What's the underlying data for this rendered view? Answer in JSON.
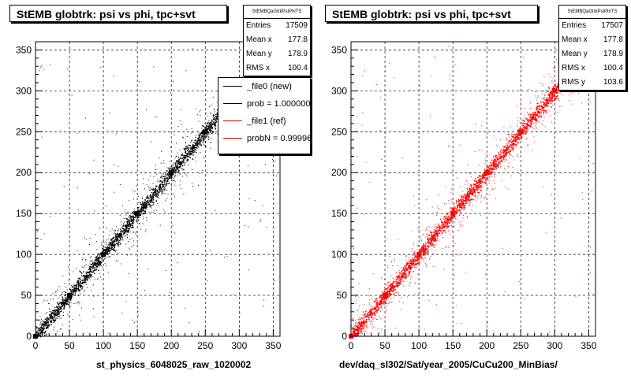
{
  "panels": [
    {
      "title": "StEMB globtrk: psi vs phi, tpc+svt",
      "stats": {
        "name": "StEMBQaGtrkPsiPhiTS",
        "rows": [
          {
            "label": "Entries",
            "value": "17509"
          },
          {
            "label": "Mean x",
            "value": "177.8"
          },
          {
            "label": "Mean y",
            "value": "178.9"
          },
          {
            "label": "RMS x",
            "value": "100.4"
          }
        ]
      },
      "legend": {
        "entries": [
          {
            "label": "_file0 (new)",
            "color": "#000000"
          },
          {
            "label": "prob = 1.000000",
            "color": "#000000"
          },
          {
            "label": "_file1 (ref)",
            "color": "#cc0000"
          },
          {
            "label": "probN = 0.999960",
            "color": "#cc0000"
          }
        ]
      },
      "xlabel": "st_physics_6048025_raw_1020002",
      "marker_color": "#000000"
    },
    {
      "title": "StEMB globtrk: psi vs phi, tpc+svt",
      "stats": {
        "name": "StEMBQaGtrkPsiPhiTS",
        "rows": [
          {
            "label": "Entries",
            "value": "17507"
          },
          {
            "label": "Mean x",
            "value": "177.8"
          },
          {
            "label": "Mean y",
            "value": "178.9"
          },
          {
            "label": "RMS x",
            "value": "100.4"
          },
          {
            "label": "RMS y",
            "value": "103.6"
          }
        ]
      },
      "xlabel": "dev/daq_sl302/Sat/year_2005/CuCu200_MinBias/",
      "marker_color": "#ff0000"
    }
  ],
  "chart_data": [
    {
      "type": "scatter",
      "title": "StEMB globtrk: psi vs phi, tpc+svt",
      "xlabel": "st_physics_6048025_raw_1020002",
      "ylabel": "",
      "xlim": [
        0,
        360
      ],
      "ylim": [
        0,
        360
      ],
      "xticks": [
        0,
        50,
        100,
        150,
        200,
        250,
        300,
        350
      ],
      "yticks": [
        0,
        50,
        100,
        150,
        200,
        250,
        300,
        350
      ],
      "grid": true,
      "series": [
        {
          "name": "_file0 (new)",
          "color": "#000000",
          "x": [
            0,
            50,
            100,
            150,
            200,
            250,
            300,
            350
          ],
          "y": [
            0,
            50,
            100,
            150,
            200,
            250,
            300,
            350
          ]
        }
      ]
    },
    {
      "type": "scatter",
      "title": "StEMB globtrk: psi vs phi, tpc+svt",
      "xlabel": "dev/daq_sl302/Sat/year_2005/CuCu200_MinBias/",
      "ylabel": "",
      "xlim": [
        0,
        360
      ],
      "ylim": [
        0,
        360
      ],
      "xticks": [
        0,
        50,
        100,
        150,
        200,
        250,
        300,
        350
      ],
      "yticks": [
        0,
        50,
        100,
        150,
        200,
        250,
        300,
        350
      ],
      "grid": true,
      "series": [
        {
          "name": "_file1 (ref)",
          "color": "#ff0000",
          "x": [
            0,
            50,
            100,
            150,
            200,
            250,
            300,
            350
          ],
          "y": [
            0,
            50,
            100,
            150,
            200,
            250,
            300,
            350
          ]
        }
      ]
    }
  ]
}
